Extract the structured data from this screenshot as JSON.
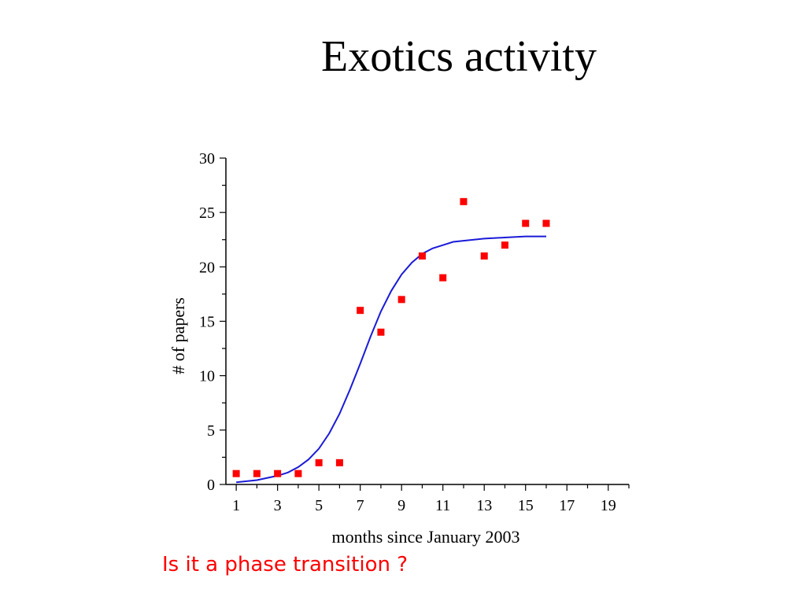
{
  "slide": {
    "title": "Exotics activity",
    "caption": "Is it a phase transition ?"
  },
  "colors": {
    "points": "#ff0000",
    "fit_line": "#1a1ad8",
    "caption": "#ff0000"
  },
  "chart_data": {
    "type": "scatter",
    "xlabel": "months since January 2003",
    "ylabel": "# of papers",
    "xlim": [
      0.5,
      20
    ],
    "ylim": [
      0,
      30
    ],
    "x_ticks": [
      1,
      3,
      5,
      7,
      9,
      11,
      13,
      15,
      17,
      19
    ],
    "y_ticks": [
      0,
      5,
      10,
      15,
      20,
      25,
      30
    ],
    "grid": false,
    "legend": "none",
    "series": [
      {
        "kind": "points",
        "marker": "square",
        "x": [
          1,
          2,
          3,
          4,
          5,
          6,
          7,
          8,
          9,
          10,
          11,
          12,
          13,
          14,
          15,
          16
        ],
        "y": [
          1,
          1,
          1,
          1,
          2,
          2,
          16,
          14,
          17,
          21,
          19,
          26,
          21,
          22,
          24,
          24
        ]
      },
      {
        "kind": "fit",
        "x": [
          1,
          2,
          3,
          3.5,
          4,
          4.5,
          5,
          5.5,
          6,
          6.5,
          7,
          7.5,
          8,
          8.5,
          9,
          9.5,
          10,
          10.5,
          11,
          11.5,
          12,
          12.5,
          13,
          14,
          15,
          16
        ],
        "y": [
          0.2,
          0.4,
          0.8,
          1.1,
          1.6,
          2.3,
          3.3,
          4.7,
          6.5,
          8.7,
          11.1,
          13.6,
          15.9,
          17.8,
          19.3,
          20.4,
          21.2,
          21.7,
          22.0,
          22.3,
          22.4,
          22.5,
          22.6,
          22.7,
          22.8,
          22.8
        ]
      }
    ]
  }
}
